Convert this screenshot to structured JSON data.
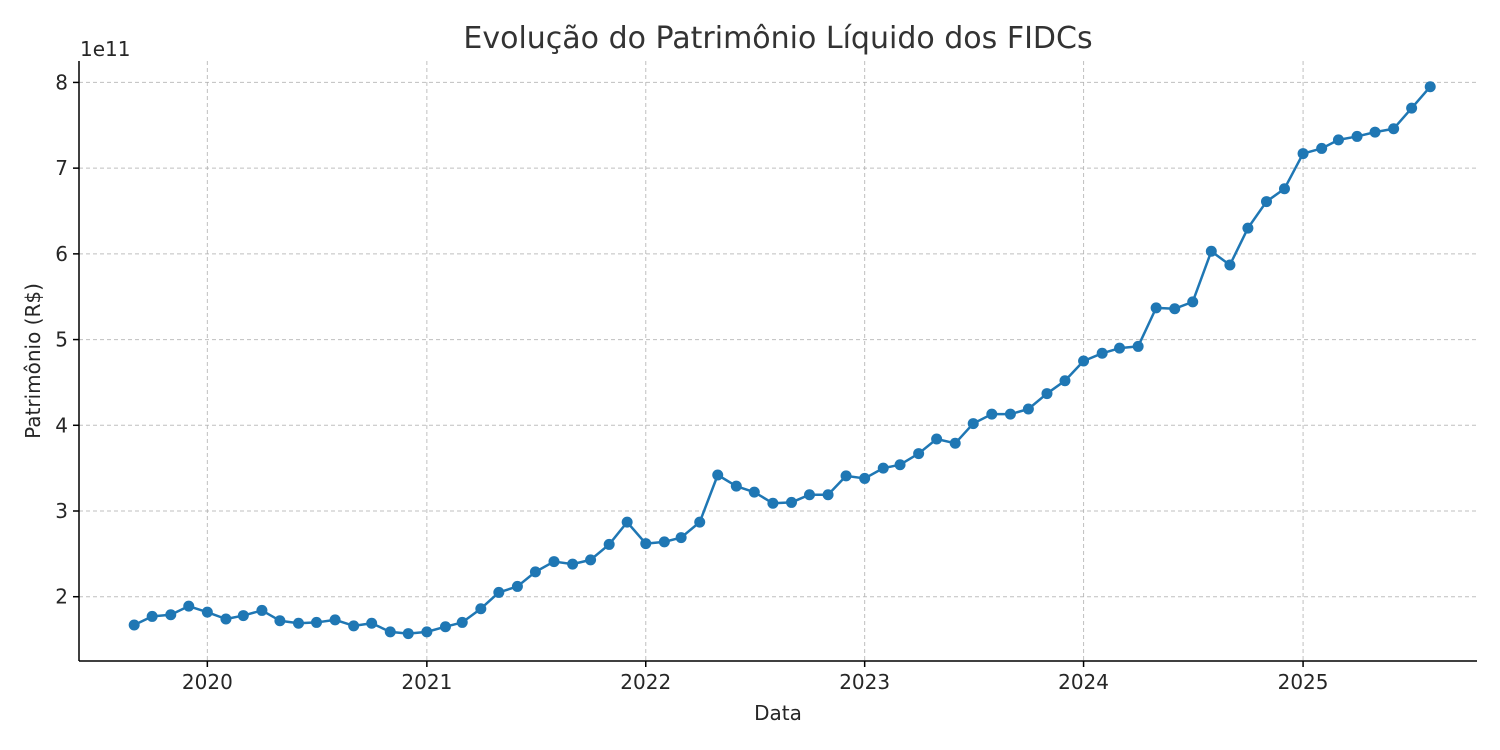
{
  "chart_data": {
    "type": "line",
    "title": "Evolução do Patrimônio Líquido dos FIDCs",
    "xlabel": "Data",
    "ylabel": "Patrimônio (R$)",
    "y_offset_label": "1e11",
    "x_tick_labels": [
      "2020",
      "2021",
      "2022",
      "2023",
      "2024",
      "2025"
    ],
    "y_tick_labels": [
      "2",
      "3",
      "4",
      "5",
      "6",
      "7",
      "8"
    ],
    "x_range": [
      "2019-06-01",
      "2025-10-18"
    ],
    "y_range": [
      125000000000,
      825000000000
    ],
    "grid": true,
    "color": "#1f77b4",
    "series": [
      {
        "x": [
          "2019-09",
          "2019-10",
          "2019-11",
          "2019-12",
          "2020-01",
          "2020-02",
          "2020-03",
          "2020-04",
          "2020-05",
          "2020-06",
          "2020-07",
          "2020-08",
          "2020-09",
          "2020-10",
          "2020-11",
          "2020-12",
          "2021-01",
          "2021-02",
          "2021-03",
          "2021-04",
          "2021-05",
          "2021-06",
          "2021-07",
          "2021-08",
          "2021-09",
          "2021-10",
          "2021-11",
          "2021-12",
          "2022-01",
          "2022-02",
          "2022-03",
          "2022-04",
          "2022-05",
          "2022-06",
          "2022-07",
          "2022-08",
          "2022-09",
          "2022-10",
          "2022-11",
          "2022-12",
          "2023-01",
          "2023-02",
          "2023-03",
          "2023-04",
          "2023-05",
          "2023-06",
          "2023-07",
          "2023-08",
          "2023-09",
          "2023-10",
          "2023-11",
          "2023-12",
          "2024-01",
          "2024-02",
          "2024-03",
          "2024-04",
          "2024-05",
          "2024-06",
          "2024-07",
          "2024-08",
          "2024-09",
          "2024-10",
          "2024-11",
          "2024-12",
          "2025-01",
          "2025-02",
          "2025-03",
          "2025-04",
          "2025-05",
          "2025-06",
          "2025-07",
          "2025-08"
        ],
        "y": [
          167000000000,
          177000000000,
          179000000000,
          189000000000,
          182000000000,
          174000000000,
          178000000000,
          184000000000,
          172000000000,
          169000000000,
          170000000000,
          173000000000,
          166000000000,
          169000000000,
          159000000000,
          157000000000,
          159000000000,
          165000000000,
          170000000000,
          186000000000,
          205000000000,
          212000000000,
          229000000000,
          241000000000,
          238000000000,
          243000000000,
          261000000000,
          287000000000,
          262000000000,
          264000000000,
          269000000000,
          287000000000,
          342000000000,
          329000000000,
          322000000000,
          309000000000,
          310000000000,
          319000000000,
          319000000000,
          341000000000,
          338000000000,
          350000000000,
          354000000000,
          367000000000,
          384000000000,
          379000000000,
          402000000000,
          413000000000,
          413000000000,
          419000000000,
          437000000000,
          452000000000,
          475000000000,
          484000000000,
          490000000000,
          492000000000,
          537000000000,
          536000000000,
          544000000000,
          603000000000,
          587000000000,
          630000000000,
          661000000000,
          676000000000,
          717000000000,
          723000000000,
          733000000000,
          737000000000,
          742000000000,
          746000000000,
          770000000000,
          795000000000
        ]
      }
    ]
  }
}
